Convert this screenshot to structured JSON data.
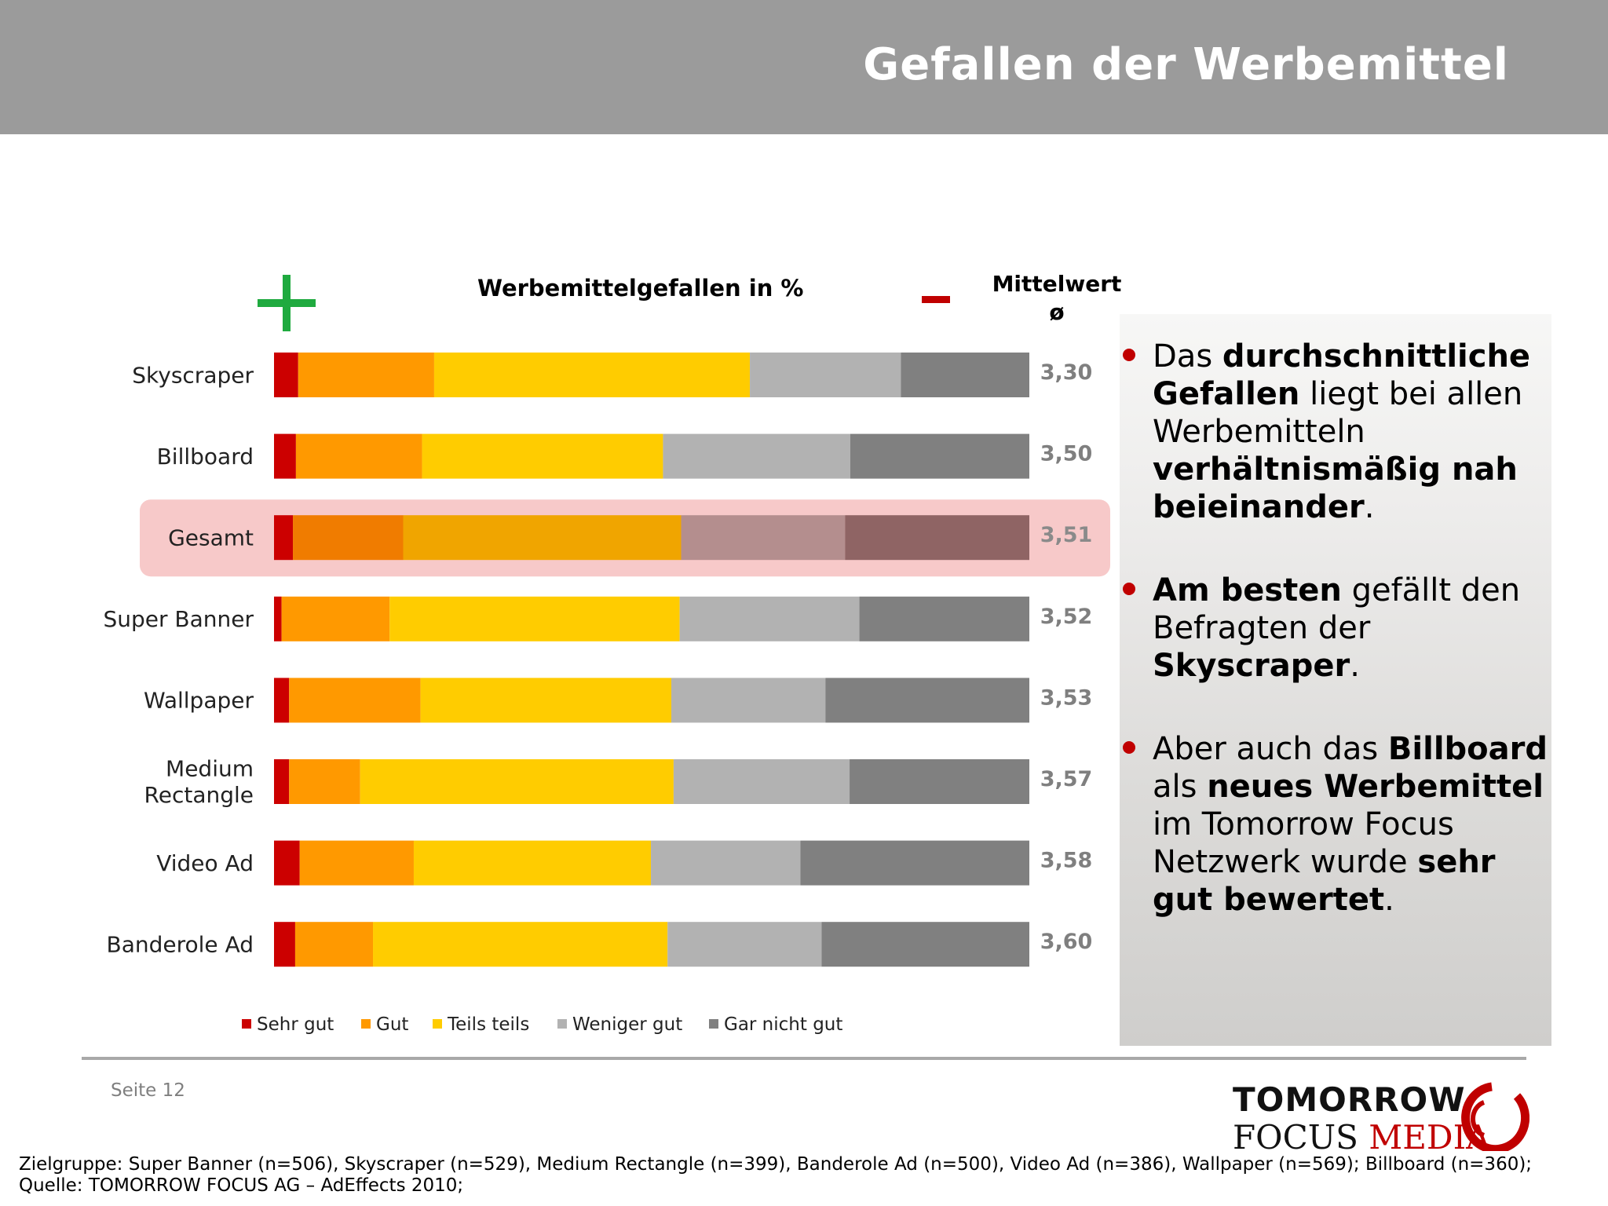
{
  "header": {
    "title": "Gefallen der Werbemittel"
  },
  "chart_data": {
    "type": "bar",
    "orientation": "horizontal",
    "stacked": true,
    "title": "Werbemittelgefallen in %",
    "mean_label": "Mittelwert",
    "mean_symbol": "ø",
    "xlim": [
      0,
      100
    ],
    "categories": [
      "Skyscraper",
      "Billboard",
      "Gesamt",
      "Super Banner",
      "Wallpaper",
      "Medium Rectangle",
      "Video Ad",
      "Banderole Ad"
    ],
    "highlight_category": "Gesamt",
    "series": [
      {
        "name": "Sehr gut",
        "values": [
          3.2,
          2.9,
          2.5,
          1.0,
          2.0,
          2.0,
          3.4,
          2.8
        ]
      },
      {
        "name": "Gut",
        "values": [
          18.0,
          16.7,
          14.6,
          14.3,
          17.4,
          9.4,
          15.1,
          10.3
        ]
      },
      {
        "name": "Teils teils",
        "values": [
          41.8,
          31.9,
          36.8,
          38.4,
          33.2,
          41.5,
          31.4,
          39.0
        ]
      },
      {
        "name": "Weniger gut",
        "values": [
          20.0,
          24.8,
          21.7,
          23.8,
          20.4,
          23.3,
          19.8,
          20.4
        ]
      },
      {
        "name": "Gar nicht gut",
        "values": [
          17.0,
          23.7,
          24.4,
          22.5,
          27.0,
          23.8,
          30.3,
          27.5
        ]
      }
    ],
    "means": [
      "3,30",
      "3,50",
      "3,51",
      "3,52",
      "3,53",
      "3,57",
      "3,58",
      "3,60"
    ],
    "colors": [
      "#cc0000",
      "#ff9900",
      "#ffcc00",
      "#b2b2b2",
      "#808080"
    ],
    "highlight_colors": [
      "#cc0000",
      "#f07c00",
      "#f0a500",
      "#b48e8e",
      "#8f6464"
    ],
    "legend_position": "bottom"
  },
  "bullets": [
    [
      {
        "text": "Das ",
        "bold": false
      },
      {
        "text": "durchschnittliche Gefallen",
        "bold": true
      },
      {
        "text": " liegt bei allen Werbemitteln ",
        "bold": false
      },
      {
        "text": "verhältnismäßig nah beieinander",
        "bold": true
      },
      {
        "text": ".",
        "bold": false
      }
    ],
    [
      {
        "text": "Am besten",
        "bold": true
      },
      {
        "text": " gefällt den Befragten der ",
        "bold": false
      },
      {
        "text": "Skyscraper",
        "bold": true
      },
      {
        "text": ".",
        "bold": false
      }
    ],
    [
      {
        "text": "Aber auch das ",
        "bold": false
      },
      {
        "text": "Billboard",
        "bold": true
      },
      {
        "text": " als ",
        "bold": false
      },
      {
        "text": "neues Werbemittel",
        "bold": true
      },
      {
        "text": " im Tomorrow Focus Netzwerk wurde ",
        "bold": false
      },
      {
        "text": "sehr gut bewertet",
        "bold": true
      },
      {
        "text": ".",
        "bold": false
      }
    ]
  ],
  "footer": {
    "page": "Seite 12",
    "logo_line1": "TOMORROW",
    "logo_line2_a": "FOCUS",
    "logo_line2_b": "MEDIA",
    "note": "Zielgruppe: Super Banner (n=506), Skyscraper (n=529), Medium Rectangle (n=399), Banderole Ad (n=500), Video Ad (n=386), Wallpaper (n=569); Billboard (n=360); Quelle: TOMORROW FOCUS AG – AdEffects 2010;"
  }
}
